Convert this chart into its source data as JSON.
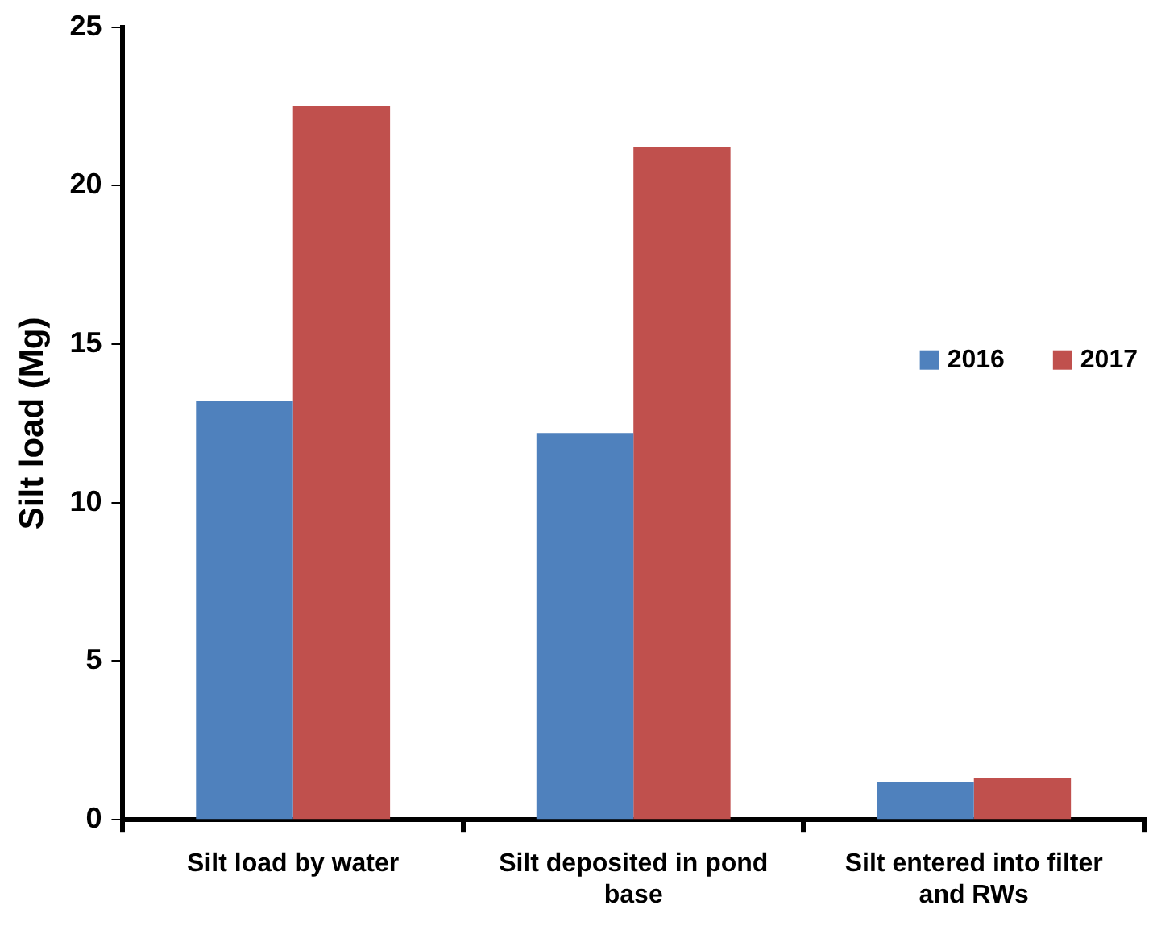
{
  "chart_data": {
    "type": "bar",
    "ylabel": "Silt load (Mg)",
    "categories": [
      "Silt load by water",
      "Silt deposited in pond base",
      "Silt entered into filter and RWs"
    ],
    "series": [
      {
        "name": "2016",
        "color": "#4f81bd",
        "values": [
          13.2,
          12.2,
          1.2
        ]
      },
      {
        "name": "2017",
        "color": "#c0504d",
        "values": [
          22.5,
          21.2,
          1.3
        ]
      }
    ],
    "ylim": [
      0,
      25
    ],
    "yticks": [
      0,
      5,
      10,
      15,
      20,
      25
    ],
    "grid": false,
    "legend": "right"
  }
}
